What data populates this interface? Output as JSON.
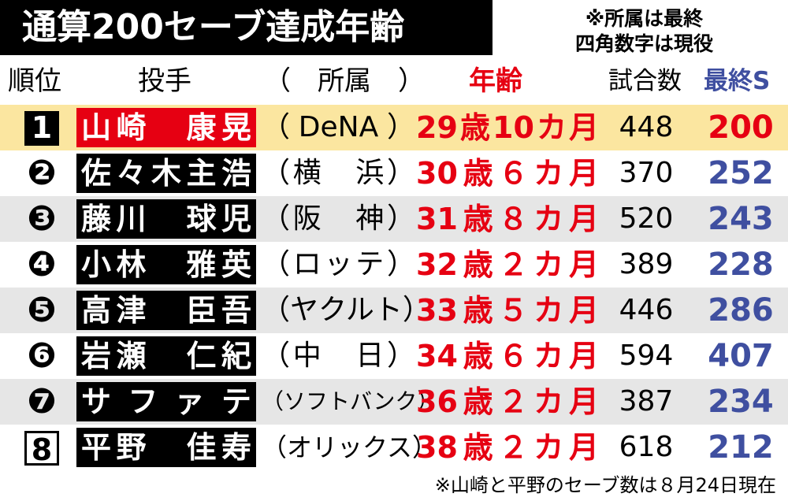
{
  "header": {
    "title": "通算200セーブ達成年齢",
    "notes": [
      "※所属は最終",
      "四角数字は現役"
    ]
  },
  "columns": {
    "rank": "順位",
    "pitcher": "投手",
    "team": "（　所属　）",
    "age": "年齢",
    "games": "試合数",
    "saves": "最終S"
  },
  "rows": [
    {
      "rank": "1",
      "name": "山崎　康晃",
      "team": "（DeNA）",
      "age": "29歳10カ月",
      "games": 448,
      "saves": 200
    },
    {
      "rank": "❷",
      "name": "佐々木主浩",
      "team": "（横　浜）",
      "age": "30歳６カ月",
      "games": 370,
      "saves": 252
    },
    {
      "rank": "❸",
      "name": "藤川　球児",
      "team": "（阪　神）",
      "age": "31歳８カ月",
      "games": 520,
      "saves": 243
    },
    {
      "rank": "❹",
      "name": "小林　雅英",
      "team": "（ロッテ）",
      "age": "32歳２カ月",
      "games": 389,
      "saves": 228
    },
    {
      "rank": "❺",
      "name": "高津　臣吾",
      "team": "（ヤクルト）",
      "age": "33歳５カ月",
      "games": 446,
      "saves": 286
    },
    {
      "rank": "❻",
      "name": "岩瀬　仁紀",
      "team": "（中　日）",
      "age": "34歳６カ月",
      "games": 594,
      "saves": 407
    },
    {
      "rank": "❼",
      "name": "サファテ",
      "team": "（ソフトバンク）",
      "age": "36歳２カ月",
      "games": 387,
      "saves": 234
    },
    {
      "rank": "8",
      "name": "平野　佳寿",
      "team": "（オリックス）",
      "age": "38歳２カ月",
      "games": 618,
      "saves": 212
    }
  ],
  "footnote": "※山崎と平野のセーブ数は８月24日現在"
}
